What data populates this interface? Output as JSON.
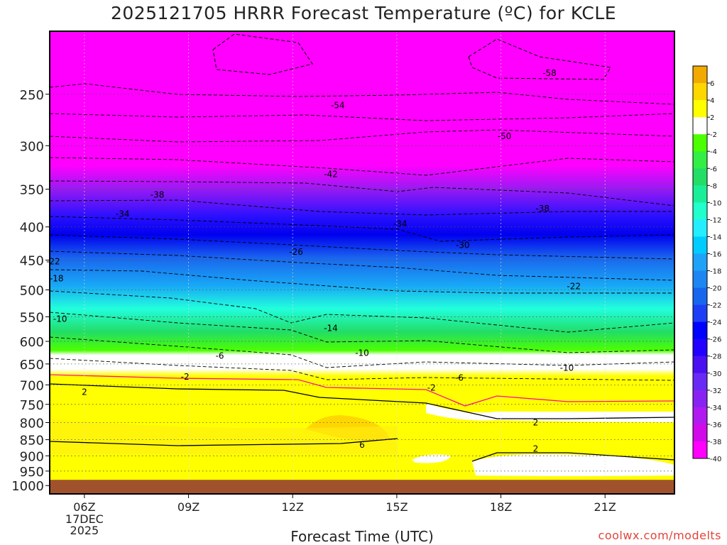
{
  "chart_data": {
    "type": "heatmap",
    "title": "2025121705 HRRR Forecast Temperature (ºC) for KCLE",
    "xlabel": "Forecast Time (UTC)",
    "ylabel": "",
    "credit": "coolwx.com/modelts",
    "x_ticks": [
      {
        "label": "06Z",
        "hour": 6
      },
      {
        "label": "09Z",
        "hour": 9
      },
      {
        "label": "12Z",
        "hour": 12
      },
      {
        "label": "15Z",
        "hour": 15
      },
      {
        "label": "18Z",
        "hour": 18
      },
      {
        "label": "21Z",
        "hour": 21
      }
    ],
    "x_date_label": [
      "17DEC",
      "2025"
    ],
    "xlim": [
      5,
      23
    ],
    "y_axis": {
      "scale": "log-pressure",
      "units": "hPa",
      "inverted": true,
      "ylim": [
        200,
        1030
      ]
    },
    "y_ticks": [
      250,
      300,
      350,
      400,
      450,
      500,
      550,
      600,
      650,
      700,
      750,
      800,
      850,
      900,
      950,
      1000
    ],
    "grid": true,
    "surface_pressure_hPa": 980,
    "colorbar": {
      "labels": [
        "6",
        "4",
        "2",
        "-2",
        "-4",
        "-6",
        "-8",
        "-10",
        "-12",
        "-14",
        "-16",
        "-18",
        "-20",
        "-22",
        "-24",
        "-26",
        "-28",
        "-30",
        "-32",
        "-34",
        "-36",
        "-38",
        "-40"
      ],
      "colors": [
        "#f2a900",
        "#ffd700",
        "#ffff00",
        "#ffffff",
        "#4cff00",
        "#33ee44",
        "#22dd66",
        "#1aee99",
        "#22ffcc",
        "#22eeff",
        "#00ccff",
        "#1fa2f7",
        "#1e86f2",
        "#1766ee",
        "#1d3ef5",
        "#0000ff",
        "#2200ff",
        "#4b10f0",
        "#6a2af5",
        "#8822f2",
        "#b01af0",
        "#d00ae8",
        "#ff00ff"
      ],
      "position": "right"
    },
    "isotherm_labels": [
      {
        "text": "-58",
        "hour": 19.4,
        "p": 232
      },
      {
        "text": "-54",
        "hour": 13.3,
        "p": 260
      },
      {
        "text": "-50",
        "hour": 18.1,
        "p": 290
      },
      {
        "text": "-42",
        "hour": 13.1,
        "p": 332
      },
      {
        "text": "-38",
        "hour": 8.1,
        "p": 357
      },
      {
        "text": "-38",
        "hour": 19.2,
        "p": 375
      },
      {
        "text": "-34",
        "hour": 7.1,
        "p": 382
      },
      {
        "text": "-34",
        "hour": 15.1,
        "p": 396
      },
      {
        "text": "-30",
        "hour": 16.9,
        "p": 427
      },
      {
        "text": "-26",
        "hour": 12.1,
        "p": 437
      },
      {
        "text": "-22",
        "hour": 5.1,
        "p": 452
      },
      {
        "text": "-22",
        "hour": 20.1,
        "p": 494
      },
      {
        "text": "-18",
        "hour": 5.2,
        "p": 480
      },
      {
        "text": "-14",
        "hour": 13.1,
        "p": 573
      },
      {
        "text": "-10",
        "hour": 5.3,
        "p": 554
      },
      {
        "text": "-10",
        "hour": 14.0,
        "p": 625
      },
      {
        "text": "-10",
        "hour": 19.9,
        "p": 659
      },
      {
        "text": "-6",
        "hour": 9.9,
        "p": 632
      },
      {
        "text": "-6",
        "hour": 16.8,
        "p": 683
      },
      {
        "text": "-2",
        "hour": 8.9,
        "p": 680
      },
      {
        "text": "-2",
        "hour": 16.0,
        "p": 707
      },
      {
        "text": "2",
        "hour": 6.0,
        "p": 718
      },
      {
        "text": "2",
        "hour": 19.0,
        "p": 800
      },
      {
        "text": "2",
        "hour": 19.0,
        "p": 878
      },
      {
        "text": "6",
        "hour": 14.0,
        "p": 866
      }
    ]
  }
}
